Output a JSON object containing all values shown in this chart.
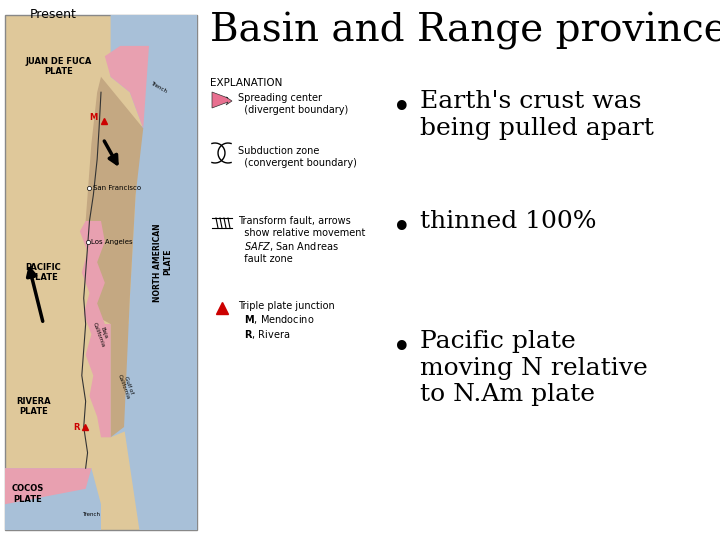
{
  "title": "Basin and Range province",
  "title_fontsize": 28,
  "title_color": "#000000",
  "bg_color": "#ffffff",
  "bullet_points": [
    "Earth's crust was\nbeing pulled apart",
    "thinned 100%",
    "Pacific plate\nmoving N relative\nto N.Am plate"
  ],
  "bullet_fontsize": 18,
  "bullet_color": "#000000",
  "present_label": "Present",
  "map_tan": "#dfc89a",
  "map_brown": "#c4a882",
  "map_blue": "#a8c0d8",
  "map_pink": "#e8a0b0",
  "map_border": "#888888",
  "expl_label_fs": 7,
  "expl_text_fs": 7,
  "plate_label_fs": 6,
  "city_fs": 5
}
